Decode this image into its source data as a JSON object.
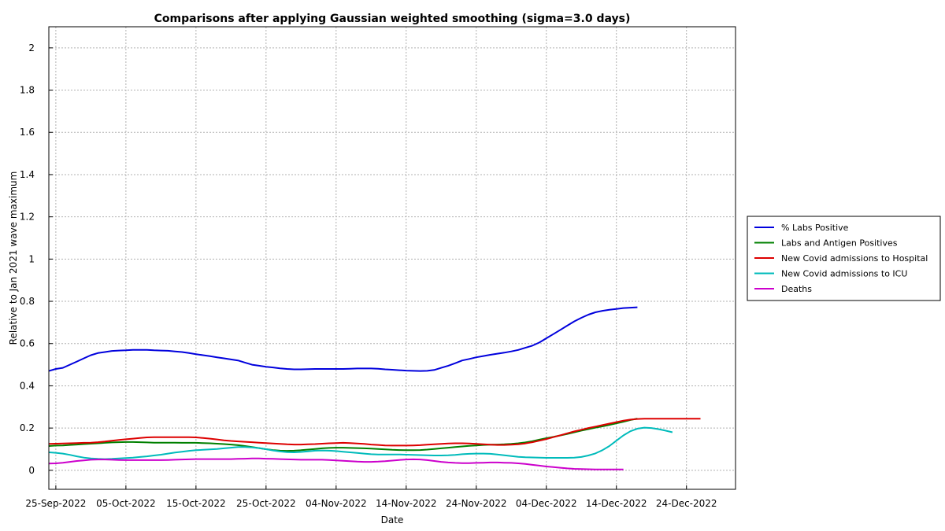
{
  "chart_data": {
    "type": "line",
    "title": "Comparisons after applying Gaussian weighted smoothing (sigma=3.0 days)",
    "xlabel": "Date",
    "ylabel": "Relative to Jan 2021 wave maximum",
    "x_start": "2022-09-24",
    "x_step_days": 1,
    "xlim": [
      "2022-09-24",
      "2022-12-31"
    ],
    "ylim": [
      -0.09,
      2.1
    ],
    "xticks": [
      {
        "date": "2022-09-25",
        "label": "25-Sep-2022"
      },
      {
        "date": "2022-10-05",
        "label": "05-Oct-2022"
      },
      {
        "date": "2022-10-15",
        "label": "15-Oct-2022"
      },
      {
        "date": "2022-10-25",
        "label": "25-Oct-2022"
      },
      {
        "date": "2022-11-04",
        "label": "04-Nov-2022"
      },
      {
        "date": "2022-11-14",
        "label": "14-Nov-2022"
      },
      {
        "date": "2022-11-24",
        "label": "24-Nov-2022"
      },
      {
        "date": "2022-12-04",
        "label": "04-Dec-2022"
      },
      {
        "date": "2022-12-14",
        "label": "14-Dec-2022"
      },
      {
        "date": "2022-12-24",
        "label": "24-Dec-2022"
      }
    ],
    "yticks": [
      {
        "value": 0,
        "label": "0"
      },
      {
        "value": 0.2,
        "label": "0.2"
      },
      {
        "value": 0.4,
        "label": "0.4"
      },
      {
        "value": 0.6,
        "label": "0.6"
      },
      {
        "value": 0.8,
        "label": "0.8"
      },
      {
        "value": 1.0,
        "label": "1"
      },
      {
        "value": 1.2,
        "label": "1.2"
      },
      {
        "value": 1.4,
        "label": "1.4"
      },
      {
        "value": 1.6,
        "label": "1.6"
      },
      {
        "value": 1.8,
        "label": "1.8"
      },
      {
        "value": 2.0,
        "label": "2"
      }
    ],
    "grid": true,
    "legend_position": "right",
    "series": [
      {
        "name": "% Labs Positive",
        "color": "#0000dd",
        "values": [
          0.47,
          0.48,
          0.485,
          0.5,
          0.515,
          0.53,
          0.545,
          0.555,
          0.56,
          0.565,
          0.567,
          0.568,
          0.57,
          0.57,
          0.57,
          0.568,
          0.567,
          0.566,
          0.563,
          0.56,
          0.555,
          0.55,
          0.545,
          0.54,
          0.535,
          0.53,
          0.525,
          0.52,
          0.51,
          0.5,
          0.495,
          0.49,
          0.487,
          0.483,
          0.48,
          0.478,
          0.478,
          0.479,
          0.48,
          0.48,
          0.48,
          0.48,
          0.48,
          0.481,
          0.482,
          0.482,
          0.482,
          0.481,
          0.478,
          0.476,
          0.474,
          0.472,
          0.471,
          0.47,
          0.471,
          0.475,
          0.485,
          0.495,
          0.507,
          0.52,
          0.527,
          0.535,
          0.541,
          0.547,
          0.552,
          0.557,
          0.563,
          0.57,
          0.58,
          0.59,
          0.605,
          0.625,
          0.645,
          0.665,
          0.685,
          0.705,
          0.722,
          0.737,
          0.748,
          0.755,
          0.76,
          0.764,
          0.768,
          0.77,
          0.772
        ]
      },
      {
        "name": "Labs and Antigen Positives",
        "color": "#008000",
        "values": [
          0.115,
          0.117,
          0.118,
          0.12,
          0.122,
          0.124,
          0.126,
          0.128,
          0.13,
          0.132,
          0.133,
          0.134,
          0.134,
          0.133,
          0.132,
          0.131,
          0.131,
          0.131,
          0.131,
          0.13,
          0.13,
          0.13,
          0.129,
          0.128,
          0.126,
          0.124,
          0.122,
          0.119,
          0.115,
          0.11,
          0.105,
          0.1,
          0.096,
          0.093,
          0.092,
          0.093,
          0.095,
          0.098,
          0.101,
          0.104,
          0.106,
          0.107,
          0.107,
          0.106,
          0.105,
          0.104,
          0.103,
          0.101,
          0.099,
          0.097,
          0.096,
          0.095,
          0.095,
          0.096,
          0.098,
          0.101,
          0.104,
          0.107,
          0.11,
          0.113,
          0.116,
          0.118,
          0.12,
          0.121,
          0.122,
          0.123,
          0.125,
          0.128,
          0.132,
          0.138,
          0.145,
          0.152,
          0.158,
          0.165,
          0.172,
          0.18,
          0.188,
          0.195,
          0.202,
          0.208,
          0.215,
          0.222,
          0.23,
          0.238,
          0.245
        ]
      },
      {
        "name": "New Covid admissions to Hospital",
        "color": "#dd0000",
        "values": [
          0.125,
          0.126,
          0.127,
          0.128,
          0.129,
          0.13,
          0.131,
          0.133,
          0.136,
          0.14,
          0.144,
          0.147,
          0.15,
          0.153,
          0.156,
          0.157,
          0.157,
          0.157,
          0.157,
          0.157,
          0.157,
          0.156,
          0.153,
          0.15,
          0.146,
          0.142,
          0.139,
          0.137,
          0.135,
          0.133,
          0.131,
          0.129,
          0.127,
          0.125,
          0.123,
          0.122,
          0.122,
          0.123,
          0.124,
          0.126,
          0.128,
          0.129,
          0.13,
          0.129,
          0.127,
          0.125,
          0.122,
          0.12,
          0.118,
          0.117,
          0.117,
          0.117,
          0.118,
          0.119,
          0.121,
          0.123,
          0.125,
          0.127,
          0.128,
          0.128,
          0.127,
          0.125,
          0.123,
          0.121,
          0.12,
          0.12,
          0.121,
          0.123,
          0.127,
          0.133,
          0.14,
          0.148,
          0.157,
          0.166,
          0.175,
          0.184,
          0.192,
          0.2,
          0.207,
          0.214,
          0.221,
          0.228,
          0.235,
          0.24,
          0.243,
          0.244,
          0.244,
          0.244,
          0.244,
          0.244,
          0.244,
          0.244,
          0.244,
          0.244
        ]
      },
      {
        "name": "New Covid admissions to ICU",
        "color": "#00bbbb",
        "values": [
          0.085,
          0.083,
          0.079,
          0.073,
          0.066,
          0.06,
          0.056,
          0.054,
          0.053,
          0.054,
          0.056,
          0.058,
          0.06,
          0.063,
          0.066,
          0.07,
          0.074,
          0.079,
          0.084,
          0.088,
          0.092,
          0.095,
          0.097,
          0.099,
          0.101,
          0.104,
          0.107,
          0.11,
          0.11,
          0.108,
          0.105,
          0.1,
          0.094,
          0.089,
          0.086,
          0.085,
          0.087,
          0.09,
          0.093,
          0.094,
          0.093,
          0.091,
          0.088,
          0.085,
          0.082,
          0.079,
          0.076,
          0.075,
          0.075,
          0.075,
          0.075,
          0.074,
          0.073,
          0.072,
          0.071,
          0.07,
          0.07,
          0.071,
          0.073,
          0.076,
          0.078,
          0.079,
          0.079,
          0.078,
          0.075,
          0.071,
          0.067,
          0.064,
          0.062,
          0.061,
          0.06,
          0.059,
          0.059,
          0.059,
          0.059,
          0.06,
          0.063,
          0.07,
          0.08,
          0.095,
          0.115,
          0.14,
          0.165,
          0.185,
          0.197,
          0.202,
          0.2,
          0.195,
          0.188,
          0.18
        ]
      },
      {
        "name": "Deaths",
        "color": "#cc00cc",
        "values": [
          0.032,
          0.033,
          0.036,
          0.04,
          0.044,
          0.047,
          0.05,
          0.051,
          0.051,
          0.05,
          0.049,
          0.048,
          0.048,
          0.048,
          0.048,
          0.048,
          0.048,
          0.049,
          0.05,
          0.051,
          0.052,
          0.053,
          0.053,
          0.053,
          0.053,
          0.053,
          0.053,
          0.054,
          0.055,
          0.056,
          0.056,
          0.055,
          0.054,
          0.053,
          0.052,
          0.051,
          0.05,
          0.05,
          0.05,
          0.05,
          0.049,
          0.047,
          0.045,
          0.043,
          0.041,
          0.04,
          0.04,
          0.041,
          0.043,
          0.046,
          0.049,
          0.051,
          0.052,
          0.051,
          0.048,
          0.044,
          0.04,
          0.037,
          0.035,
          0.034,
          0.034,
          0.035,
          0.036,
          0.037,
          0.037,
          0.036,
          0.035,
          0.033,
          0.03,
          0.026,
          0.022,
          0.018,
          0.015,
          0.012,
          0.009,
          0.007,
          0.006,
          0.005,
          0.004,
          0.004,
          0.004,
          0.004,
          0.004
        ]
      }
    ]
  }
}
